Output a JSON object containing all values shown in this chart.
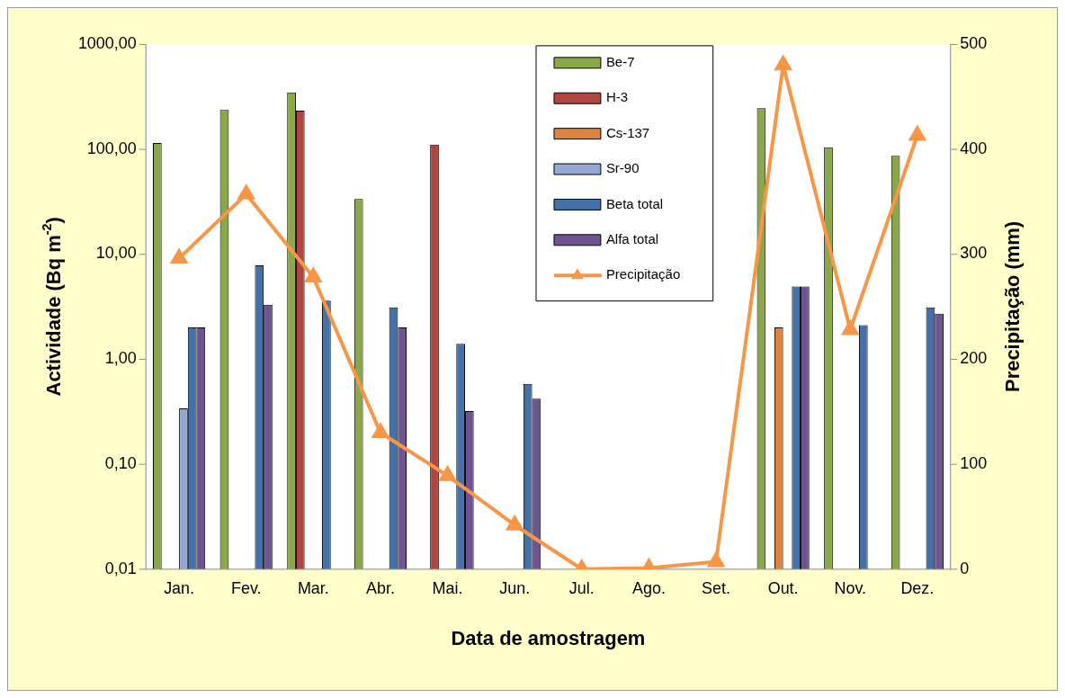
{
  "chart_data": {
    "type": "bar",
    "xlabel": "Data de amostragem",
    "ylabel": "Actividade (Bq m$^{-2}$)",
    "y2label": "Precipitação (mm)",
    "categories": [
      "Jan.",
      "Fev.",
      "Mar.",
      "Abr.",
      "Mai.",
      "Jun.",
      "Jul.",
      "Ago.",
      "Set.",
      "Out.",
      "Nov.",
      "Dez."
    ],
    "log": "y",
    "ylim": [
      0.01,
      1000
    ],
    "yticks": [
      {
        "value": 0.01,
        "label": "0,01"
      },
      {
        "value": 0.1,
        "label": "0,10"
      },
      {
        "value": 1,
        "label": "1,00"
      },
      {
        "value": 10,
        "label": "10,00"
      },
      {
        "value": 100,
        "label": "100,00"
      },
      {
        "value": 1000,
        "label": "1000,00"
      }
    ],
    "y2lim": [
      0,
      500
    ],
    "y2ticks": [
      0,
      100,
      200,
      300,
      400,
      500
    ],
    "legend": "top",
    "grid": false,
    "series": [
      {
        "name": "Be-7",
        "color": "#8aa84a",
        "values": [
          114,
          235,
          345,
          33.5,
          null,
          null,
          null,
          null,
          null,
          245,
          104,
          86
        ]
      },
      {
        "name": "H-3",
        "color": "#ae4642",
        "values": [
          null,
          null,
          232,
          null,
          110,
          null,
          null,
          null,
          null,
          null,
          null,
          null
        ]
      },
      {
        "name": "Cs-137",
        "color": "#dd8340",
        "values": [
          null,
          null,
          null,
          null,
          null,
          null,
          null,
          null,
          null,
          2,
          null,
          null
        ]
      },
      {
        "name": "Sr-90",
        "color": "#93a9d3",
        "values": [
          0.34,
          null,
          null,
          null,
          null,
          null,
          null,
          null,
          null,
          null,
          null,
          null
        ]
      },
      {
        "name": "Beta total",
        "color": "#4571a8",
        "values": [
          2,
          7.8,
          3.6,
          3.1,
          1.4,
          0.58,
          null,
          null,
          null,
          4.9,
          2.1,
          3.1
        ]
      },
      {
        "name": "Alfa total",
        "color": "#6e5592",
        "values": [
          2,
          3.3,
          null,
          2,
          0.32,
          0.42,
          null,
          null,
          null,
          4.9,
          null,
          2.7
        ]
      },
      {
        "name": "Precipitação",
        "type": "line",
        "axis": "y2",
        "color": "#f79646",
        "marker": "triangle",
        "line_style": "solid",
        "values": [
          296,
          357,
          278,
          130,
          89,
          42,
          0,
          1,
          7,
          480,
          228,
          413
        ]
      }
    ]
  }
}
